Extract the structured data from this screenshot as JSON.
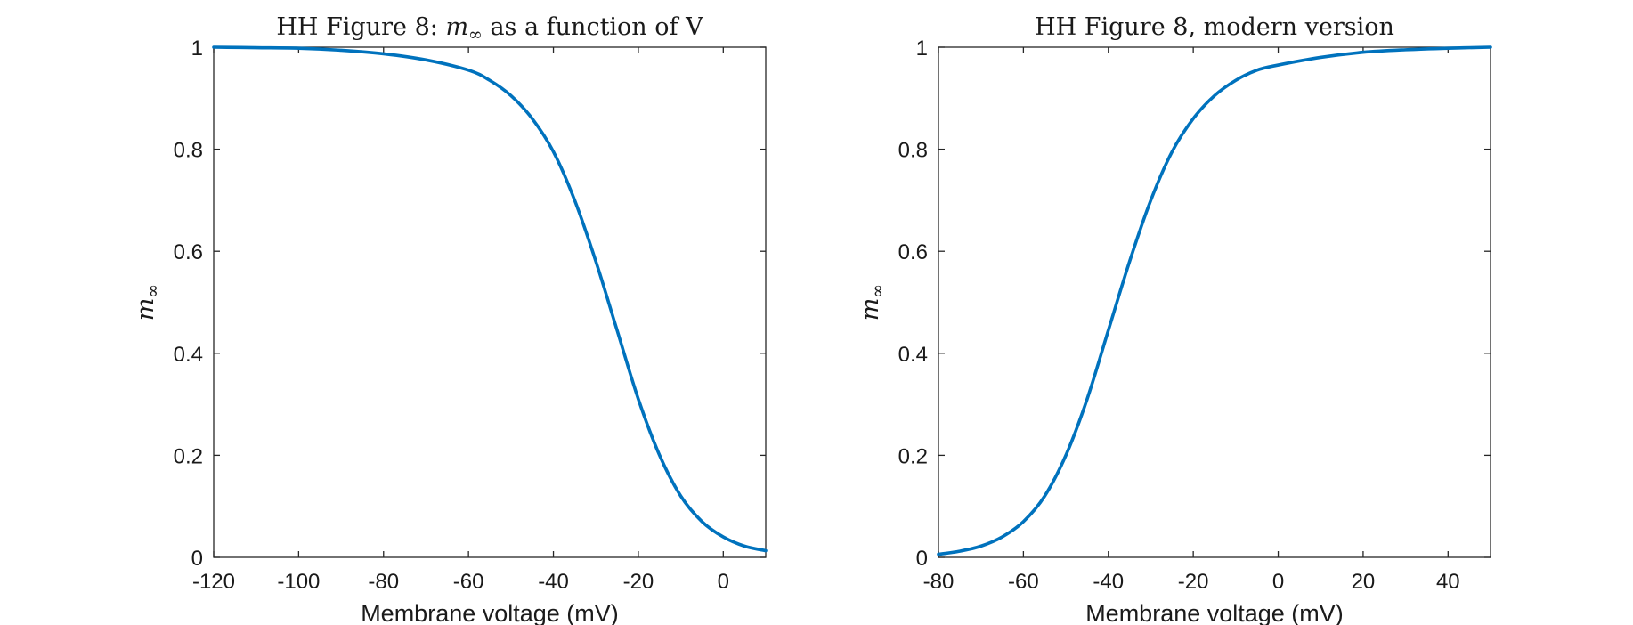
{
  "colors": {
    "series": "#0072BD",
    "axis": "#262626",
    "text": "#1a1a1a"
  },
  "chart_data": [
    {
      "type": "line",
      "title": "HH Figure 8: m∞ as a function of V",
      "title_parts": {
        "prefix": "HH Figure 8: ",
        "symbol": "m",
        "subscript": "∞",
        "suffix": " as a function of V"
      },
      "xlabel": "Membrane voltage (mV)",
      "ylabel": {
        "symbol": "m",
        "subscript": "∞"
      },
      "xlim": [
        -120,
        10
      ],
      "ylim": [
        0,
        1
      ],
      "xticks": [
        -120,
        -100,
        -80,
        -60,
        -40,
        -20,
        0
      ],
      "yticks": [
        0,
        0.2,
        0.4,
        0.6,
        0.8,
        1
      ],
      "ytick_labels": [
        "0",
        "0.2",
        "0.4",
        "0.6",
        "0.8",
        "1"
      ],
      "grid": false,
      "series": [
        {
          "x": [
            -120,
            -110,
            -100,
            -90,
            -80,
            -70,
            -60,
            -55,
            -50,
            -45,
            -40,
            -35,
            -30,
            -25,
            -20,
            -15,
            -10,
            -5,
            0,
            5,
            10
          ],
          "y": [
            1.0,
            0.999,
            0.998,
            0.994,
            0.987,
            0.975,
            0.955,
            0.935,
            0.905,
            0.86,
            0.795,
            0.7,
            0.58,
            0.445,
            0.31,
            0.2,
            0.12,
            0.07,
            0.04,
            0.022,
            0.013
          ]
        }
      ]
    },
    {
      "type": "line",
      "title": "HH Figure 8, modern version",
      "xlabel": "Membrane voltage (mV)",
      "ylabel": {
        "symbol": "m",
        "subscript": "∞"
      },
      "xlim": [
        -80,
        50
      ],
      "ylim": [
        0,
        1
      ],
      "xticks": [
        -80,
        -60,
        -40,
        -20,
        0,
        20,
        40
      ],
      "yticks": [
        0,
        0.2,
        0.4,
        0.6,
        0.8,
        1
      ],
      "ytick_labels": [
        "0",
        "0.2",
        "0.4",
        "0.6",
        "0.8",
        "1"
      ],
      "grid": false,
      "series": [
        {
          "x": [
            -80,
            -75,
            -70,
            -65,
            -60,
            -55,
            -50,
            -45,
            -40,
            -35,
            -30,
            -25,
            -20,
            -15,
            -10,
            -5,
            0,
            10,
            20,
            30,
            40,
            50
          ],
          "y": [
            0.006,
            0.012,
            0.022,
            0.04,
            0.07,
            0.12,
            0.2,
            0.31,
            0.445,
            0.58,
            0.7,
            0.795,
            0.86,
            0.905,
            0.935,
            0.955,
            0.965,
            0.98,
            0.99,
            0.995,
            0.998,
            1.0
          ]
        }
      ]
    }
  ]
}
